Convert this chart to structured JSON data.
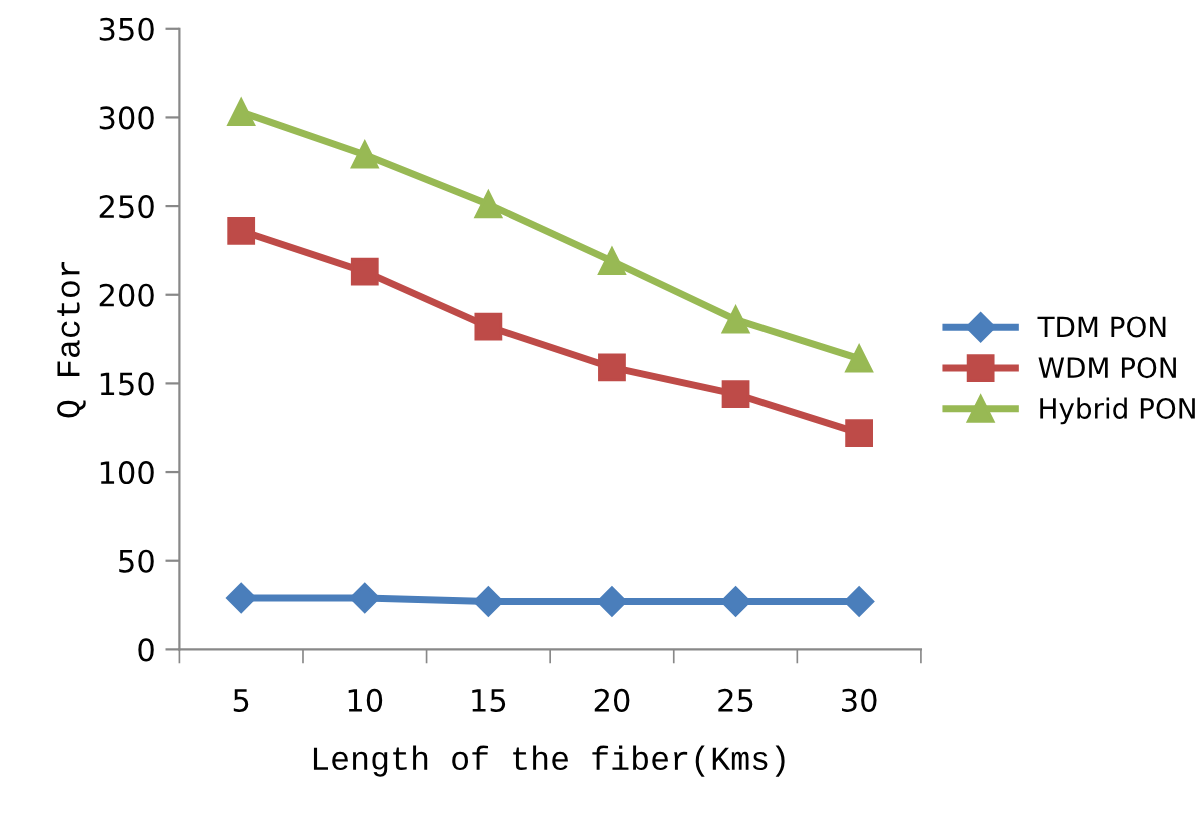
{
  "chart_data": {
    "type": "line",
    "xlabel": "Length of the fiber(Kms)",
    "ylabel": "Q Factor",
    "categories": [
      "5",
      "10",
      "15",
      "20",
      "25",
      "30"
    ],
    "series": [
      {
        "name": "TDM PON",
        "color": "#4a7ebb",
        "marker": "diamond",
        "values": [
          29,
          29,
          27,
          27,
          27,
          27
        ]
      },
      {
        "name": "WDM PON",
        "color": "#be4b48",
        "marker": "square",
        "values": [
          236,
          213,
          182,
          159,
          144,
          122
        ]
      },
      {
        "name": "Hybrid PON",
        "color": "#98b954",
        "marker": "triangle",
        "values": [
          303,
          279,
          251,
          219,
          186,
          164
        ]
      }
    ],
    "ylim": [
      0,
      350
    ],
    "yticks": [
      0,
      50,
      100,
      150,
      200,
      250,
      300,
      350
    ],
    "grid": false,
    "legend": "right"
  }
}
